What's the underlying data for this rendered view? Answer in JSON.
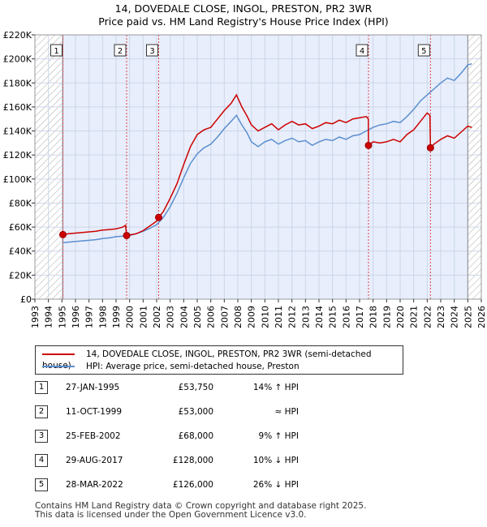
{
  "title_line1": "14, DOVEDALE CLOSE, INGOL, PRESTON, PR2 3WR",
  "title_line2": "Price paid vs. HM Land Registry's House Price Index (HPI)",
  "colors": {
    "price_line": "#cc0000",
    "hpi_line": "#5b8fd0",
    "shade": "#e8eefb",
    "hatch": "#aaaaaa",
    "grid": "#ccd6ea",
    "vline": "#dd4444"
  },
  "chart_data": {
    "type": "line",
    "xlim": [
      1993,
      2026
    ],
    "ylim": [
      0,
      220000
    ],
    "y_ticks": [
      0,
      20000,
      40000,
      60000,
      80000,
      100000,
      120000,
      140000,
      160000,
      180000,
      200000,
      220000
    ],
    "y_tick_labels": [
      "£0",
      "£20K",
      "£40K",
      "£60K",
      "£80K",
      "£100K",
      "£120K",
      "£140K",
      "£160K",
      "£180K",
      "£200K",
      "£220K"
    ],
    "x_ticks": [
      1993,
      1994,
      1995,
      1996,
      1997,
      1998,
      1999,
      2000,
      2001,
      2002,
      2003,
      2004,
      2005,
      2006,
      2007,
      2008,
      2009,
      2010,
      2011,
      2012,
      2013,
      2014,
      2015,
      2016,
      2017,
      2018,
      2019,
      2020,
      2021,
      2022,
      2023,
      2024,
      2025,
      2026
    ],
    "x_tick_labels": [
      "1993",
      "1994",
      "1995",
      "1996",
      "1997",
      "1998",
      "1999",
      "2000",
      "2001",
      "2002",
      "2003",
      "2004",
      "2005",
      "2006",
      "2007",
      "2008",
      "2009",
      "2010",
      "2011",
      "2012",
      "2013",
      "2014",
      "2015",
      "2016",
      "2017",
      "2018",
      "2019",
      "2020",
      "2021",
      "2022",
      "2023",
      "2024",
      "2025",
      "2026"
    ],
    "grid": true,
    "series": [
      {
        "name": "14, DOVEDALE CLOSE, INGOL, PRESTON, PR2 3WR (semi-detached house)",
        "color": "#cc0000",
        "points": [
          [
            1995.07,
            53750
          ],
          [
            1995.5,
            54500
          ],
          [
            1996.0,
            55000
          ],
          [
            1996.5,
            55500
          ],
          [
            1997.0,
            56000
          ],
          [
            1997.5,
            56500
          ],
          [
            1998.0,
            57500
          ],
          [
            1998.5,
            58000
          ],
          [
            1999.0,
            58500
          ],
          [
            1999.5,
            60000
          ],
          [
            1999.7,
            61500
          ],
          [
            1999.78,
            53000
          ],
          [
            2000.0,
            53500
          ],
          [
            2000.5,
            54500
          ],
          [
            2001.0,
            57000
          ],
          [
            2001.5,
            61000
          ],
          [
            2002.0,
            65000
          ],
          [
            2002.15,
            68000
          ],
          [
            2002.5,
            73000
          ],
          [
            2003.0,
            84000
          ],
          [
            2003.5,
            96000
          ],
          [
            2004.0,
            112000
          ],
          [
            2004.5,
            127000
          ],
          [
            2005.0,
            137000
          ],
          [
            2005.5,
            141000
          ],
          [
            2006.0,
            143000
          ],
          [
            2006.5,
            150000
          ],
          [
            2007.0,
            157000
          ],
          [
            2007.5,
            163000
          ],
          [
            2007.9,
            170000
          ],
          [
            2008.3,
            160000
          ],
          [
            2008.7,
            152000
          ],
          [
            2009.0,
            145000
          ],
          [
            2009.5,
            140000
          ],
          [
            2010.0,
            143000
          ],
          [
            2010.5,
            146000
          ],
          [
            2011.0,
            141000
          ],
          [
            2011.5,
            145000
          ],
          [
            2012.0,
            148000
          ],
          [
            2012.5,
            145000
          ],
          [
            2013.0,
            146000
          ],
          [
            2013.5,
            142000
          ],
          [
            2014.0,
            144000
          ],
          [
            2014.5,
            147000
          ],
          [
            2015.0,
            146000
          ],
          [
            2015.5,
            149000
          ],
          [
            2016.0,
            147000
          ],
          [
            2016.5,
            150000
          ],
          [
            2017.0,
            151000
          ],
          [
            2017.5,
            152000
          ],
          [
            2017.65,
            150000
          ],
          [
            2017.66,
            128000
          ],
          [
            2018.0,
            131000
          ],
          [
            2018.5,
            130000
          ],
          [
            2019.0,
            131000
          ],
          [
            2019.5,
            133000
          ],
          [
            2020.0,
            131000
          ],
          [
            2020.5,
            137000
          ],
          [
            2021.0,
            141000
          ],
          [
            2021.5,
            148000
          ],
          [
            2022.0,
            155000
          ],
          [
            2022.2,
            153000
          ],
          [
            2022.24,
            126000
          ],
          [
            2022.5,
            129000
          ],
          [
            2023.0,
            133000
          ],
          [
            2023.5,
            136000
          ],
          [
            2024.0,
            134000
          ],
          [
            2024.5,
            139000
          ],
          [
            2025.0,
            144000
          ],
          [
            2025.3,
            143000
          ]
        ]
      },
      {
        "name": "HPI: Average price, semi-detached house, Preston",
        "color": "#5b8fd0",
        "points": [
          [
            1995.07,
            47000
          ],
          [
            1995.5,
            47500
          ],
          [
            1996.0,
            48000
          ],
          [
            1996.5,
            48500
          ],
          [
            1997.0,
            49000
          ],
          [
            1997.5,
            49500
          ],
          [
            1998.0,
            50500
          ],
          [
            1998.5,
            51000
          ],
          [
            1999.0,
            52000
          ],
          [
            1999.5,
            52500
          ],
          [
            2000.0,
            53000
          ],
          [
            2000.5,
            54500
          ],
          [
            2001.0,
            56500
          ],
          [
            2001.5,
            59000
          ],
          [
            2002.0,
            62000
          ],
          [
            2002.5,
            68000
          ],
          [
            2003.0,
            77000
          ],
          [
            2003.5,
            88000
          ],
          [
            2004.0,
            101000
          ],
          [
            2004.5,
            113000
          ],
          [
            2005.0,
            121000
          ],
          [
            2005.5,
            126000
          ],
          [
            2006.0,
            129000
          ],
          [
            2006.5,
            135000
          ],
          [
            2007.0,
            142000
          ],
          [
            2007.5,
            148000
          ],
          [
            2007.9,
            153000
          ],
          [
            2008.3,
            145000
          ],
          [
            2008.7,
            138000
          ],
          [
            2009.0,
            131000
          ],
          [
            2009.5,
            127000
          ],
          [
            2010.0,
            131000
          ],
          [
            2010.5,
            133000
          ],
          [
            2011.0,
            129000
          ],
          [
            2011.5,
            132000
          ],
          [
            2012.0,
            134000
          ],
          [
            2012.5,
            131000
          ],
          [
            2013.0,
            132000
          ],
          [
            2013.5,
            128000
          ],
          [
            2014.0,
            131000
          ],
          [
            2014.5,
            133000
          ],
          [
            2015.0,
            132000
          ],
          [
            2015.5,
            135000
          ],
          [
            2016.0,
            133000
          ],
          [
            2016.5,
            136000
          ],
          [
            2017.0,
            137000
          ],
          [
            2017.5,
            140000
          ],
          [
            2018.0,
            143000
          ],
          [
            2018.5,
            145000
          ],
          [
            2019.0,
            146000
          ],
          [
            2019.5,
            148000
          ],
          [
            2020.0,
            147000
          ],
          [
            2020.5,
            152000
          ],
          [
            2021.0,
            158000
          ],
          [
            2021.5,
            165000
          ],
          [
            2022.0,
            170000
          ],
          [
            2022.5,
            175000
          ],
          [
            2023.0,
            180000
          ],
          [
            2023.5,
            184000
          ],
          [
            2024.0,
            182000
          ],
          [
            2024.5,
            188000
          ],
          [
            2025.0,
            195000
          ],
          [
            2025.3,
            196000
          ]
        ]
      }
    ],
    "sales": [
      {
        "num": "1",
        "x": 1995.07,
        "y": 53750
      },
      {
        "num": "2",
        "x": 1999.78,
        "y": 53000
      },
      {
        "num": "3",
        "x": 2002.15,
        "y": 68000
      },
      {
        "num": "4",
        "x": 2017.66,
        "y": 128000
      },
      {
        "num": "5",
        "x": 2022.24,
        "y": 126000
      }
    ]
  },
  "legend": {
    "price_label": "14, DOVEDALE CLOSE, INGOL, PRESTON, PR2 3WR (semi-detached house)",
    "hpi_label": "HPI: Average price, semi-detached house, Preston"
  },
  "transactions": [
    {
      "num": "1",
      "date": "27-JAN-1995",
      "price": "£53,750",
      "hpi": "14% ↑ HPI"
    },
    {
      "num": "2",
      "date": "11-OCT-1999",
      "price": "£53,000",
      "hpi": "≈ HPI"
    },
    {
      "num": "3",
      "date": "25-FEB-2002",
      "price": "£68,000",
      "hpi": "9% ↑ HPI"
    },
    {
      "num": "4",
      "date": "29-AUG-2017",
      "price": "£128,000",
      "hpi": "10% ↓ HPI"
    },
    {
      "num": "5",
      "date": "28-MAR-2022",
      "price": "£126,000",
      "hpi": "26% ↓ HPI"
    }
  ],
  "footer_line1": "Contains HM Land Registry data © Crown copyright and database right 2025.",
  "footer_line2": "This data is licensed under the Open Government Licence v3.0."
}
